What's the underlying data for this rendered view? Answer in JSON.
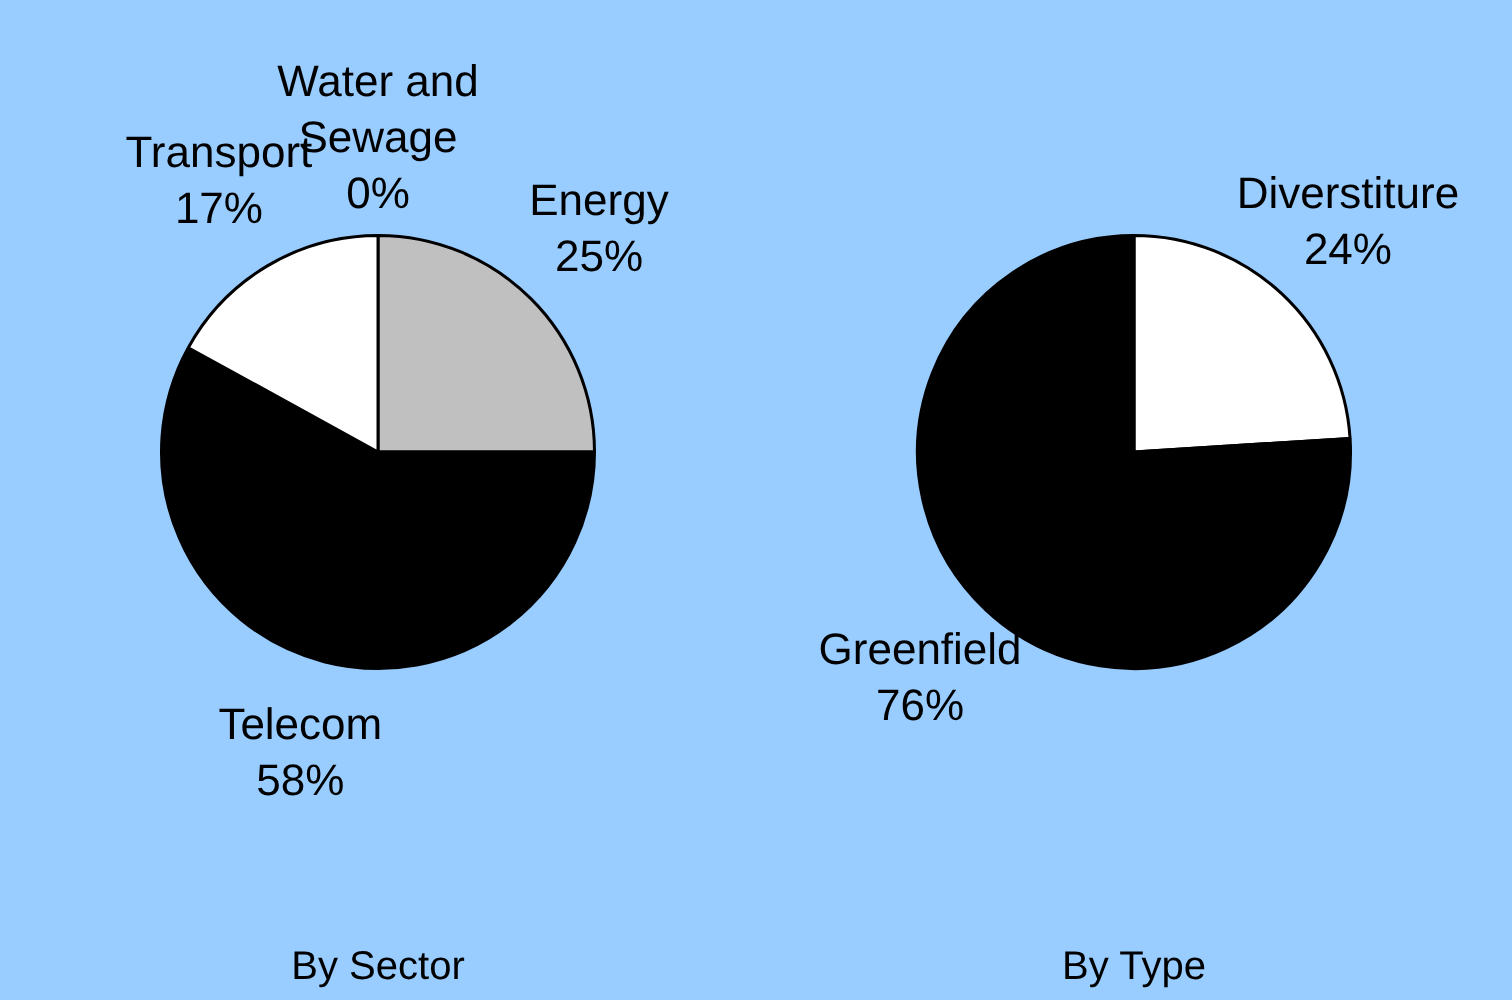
{
  "chart_data": [
    {
      "type": "pie",
      "title": "By Sector",
      "categories": [
        "Energy",
        "Telecom",
        "Transport",
        "Water and Sewage"
      ],
      "values": [
        25,
        58,
        17,
        0
      ],
      "colors": [
        "#c0c0c0",
        "#000000",
        "#ffffff",
        "#808080"
      ],
      "value_labels": [
        "25%",
        "58%",
        "17%",
        "0%"
      ],
      "legend": false
    },
    {
      "type": "pie",
      "title": "By Type",
      "categories": [
        "Diverstiture",
        "Greenfield"
      ],
      "values": [
        24,
        76
      ],
      "colors": [
        "#ffffff",
        "#000000"
      ],
      "value_labels": [
        "24%",
        "76%"
      ],
      "legend": false
    }
  ]
}
